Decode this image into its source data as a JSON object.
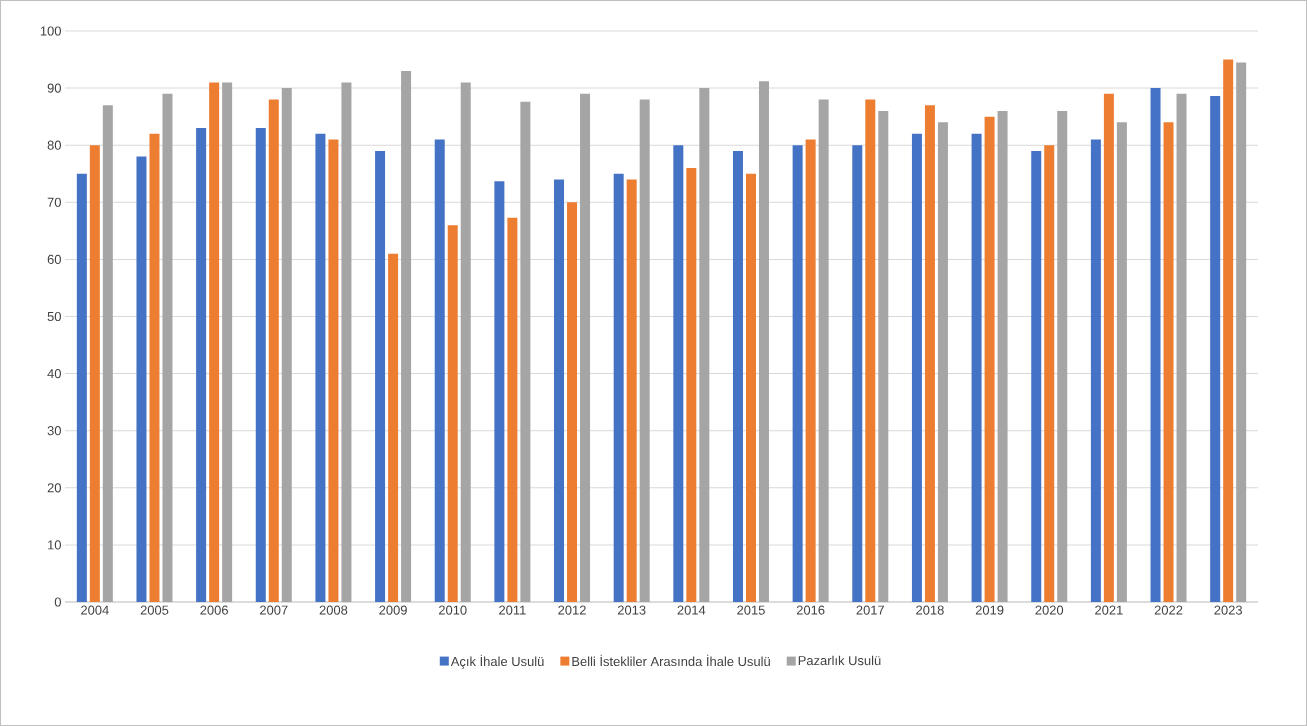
{
  "chart_data": {
    "type": "bar",
    "categories": [
      "2004",
      "2005",
      "2006",
      "2007",
      "2008",
      "2009",
      "2010",
      "2011",
      "2012",
      "2013",
      "2014",
      "2015",
      "2016",
      "2017",
      "2018",
      "2019",
      "2020",
      "2021",
      "2022",
      "2023"
    ],
    "series": [
      {
        "name": "Açık İhale Usulü",
        "color": "#4472c4",
        "values": [
          75,
          78,
          83,
          83,
          82,
          79,
          81,
          73.7,
          74,
          75,
          80,
          79,
          80,
          80,
          82,
          82,
          79,
          81,
          90,
          88.6
        ]
      },
      {
        "name": "Belli İstekliler Arasında İhale Usulü",
        "color": "#ed7d31",
        "values": [
          80,
          82,
          91,
          88,
          81,
          61,
          66,
          67.3,
          70,
          74,
          76,
          75,
          81,
          88,
          87,
          85,
          80,
          89,
          84,
          95
        ]
      },
      {
        "name": "Pazarlık Usulü",
        "color": "#a5a5a5",
        "values": [
          87,
          89,
          91,
          90,
          91,
          93,
          91,
          87.6,
          89,
          88,
          90,
          91.2,
          88,
          86,
          84,
          86,
          86,
          84,
          89,
          94.5
        ]
      }
    ],
    "ylim": [
      0,
      100
    ],
    "yticks": [
      0,
      10,
      20,
      30,
      40,
      50,
      60,
      70,
      80,
      90,
      100
    ],
    "grid": "y",
    "legend": "bottom"
  }
}
